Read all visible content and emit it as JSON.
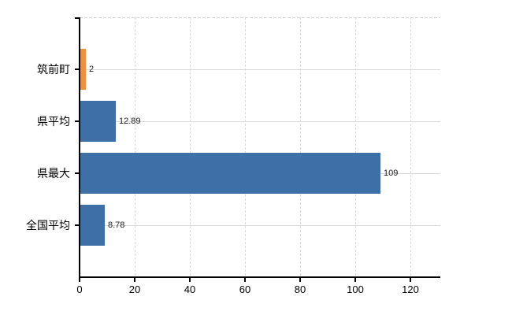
{
  "chart_data": {
    "type": "bar",
    "orientation": "horizontal",
    "title": "",
    "xlabel": "",
    "ylabel": "",
    "categories": [
      "筑前町",
      "県平均",
      "県最大",
      "全国平均"
    ],
    "values": [
      2,
      12.89,
      109,
      8.78
    ],
    "value_labels": [
      "2",
      "12.89",
      "109",
      "8.78"
    ],
    "bar_colors": [
      "#ef9143",
      "#3e6fa7",
      "#3e6fa7",
      "#3e6fa7"
    ],
    "x_tick_values": [
      0,
      20,
      40,
      60,
      80,
      100,
      120
    ],
    "x_tick_labels": [
      "0",
      "20",
      "40",
      "60",
      "80",
      "100",
      "120"
    ],
    "xlim": [
      0,
      130.9
    ],
    "grid": "on",
    "legend_position": "none"
  },
  "colors": {
    "bar_default": "#3e6fa7",
    "bar_highlight": "#ef9143",
    "axis": "#000000",
    "grid_vertical": "#d9d9d9",
    "grid_horizontal": "#d5dad5",
    "background": "#ffffff",
    "text": "#000000"
  }
}
